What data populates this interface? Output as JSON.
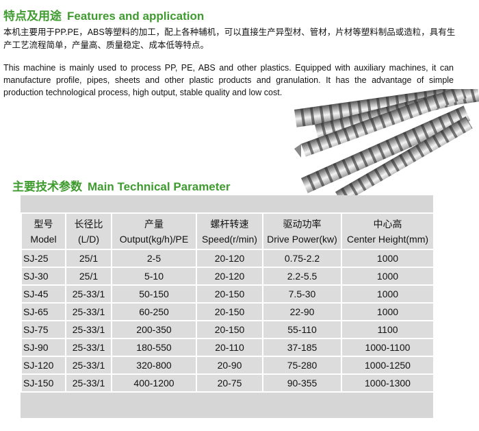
{
  "header": {
    "title_cn": "特点及用途",
    "title_en": "Features and application"
  },
  "intro": {
    "cn": "本机主要用于PP.PE，ABS等塑料的加工，配上各种辅机，可以直接生产异型材、管材，片材等塑料制品或造粒，具有生产工艺流程简单，产量高、质量稳定、成本低等特点。",
    "en": "This machine is mainly used to process PP, PE, ABS and other plastics. Equipped with auxiliary machines, it can manufacture profile, pipes, sheets and other plastic products and granulation. It has the advantage of simple production technological process, high output, stable quality and low cost."
  },
  "params": {
    "title_cn": "主要技术参数",
    "title_en": "Main Technical Parameter"
  },
  "table": {
    "header": [
      [
        "型号",
        "Model"
      ],
      [
        "长径比",
        "(L/D)"
      ],
      [
        "产量",
        "Output(kg/h)/PE"
      ],
      [
        "螺杆转速",
        "Speed(r/min)"
      ],
      [
        "驱动功率",
        "Drive Power(kw)"
      ],
      [
        "中心高",
        "Center Height(mm)"
      ]
    ],
    "rows": [
      [
        "SJ-25",
        "25/1",
        "2-5",
        "20-120",
        "0.75-2.2",
        "1000"
      ],
      [
        "SJ-30",
        "25/1",
        "5-10",
        "20-120",
        "2.2-5.5",
        "1000"
      ],
      [
        "SJ-45",
        "25-33/1",
        "50-150",
        "20-150",
        "7.5-30",
        "1000"
      ],
      [
        "SJ-65",
        "25-33/1",
        "60-250",
        "20-150",
        "22-90",
        "1000"
      ],
      [
        "SJ-75",
        "25-33/1",
        "200-350",
        "20-150",
        "55-110",
        "1100"
      ],
      [
        "SJ-90",
        "25-33/1",
        "180-550",
        "20-110",
        "37-185",
        "1000-1100"
      ],
      [
        "SJ-120",
        "25-33/1",
        "320-800",
        "20-90",
        "75-280",
        "1000-1250"
      ],
      [
        "SJ-150",
        "25-33/1",
        "400-1200",
        "20-75",
        "90-355",
        "1000-1300"
      ]
    ]
  }
}
